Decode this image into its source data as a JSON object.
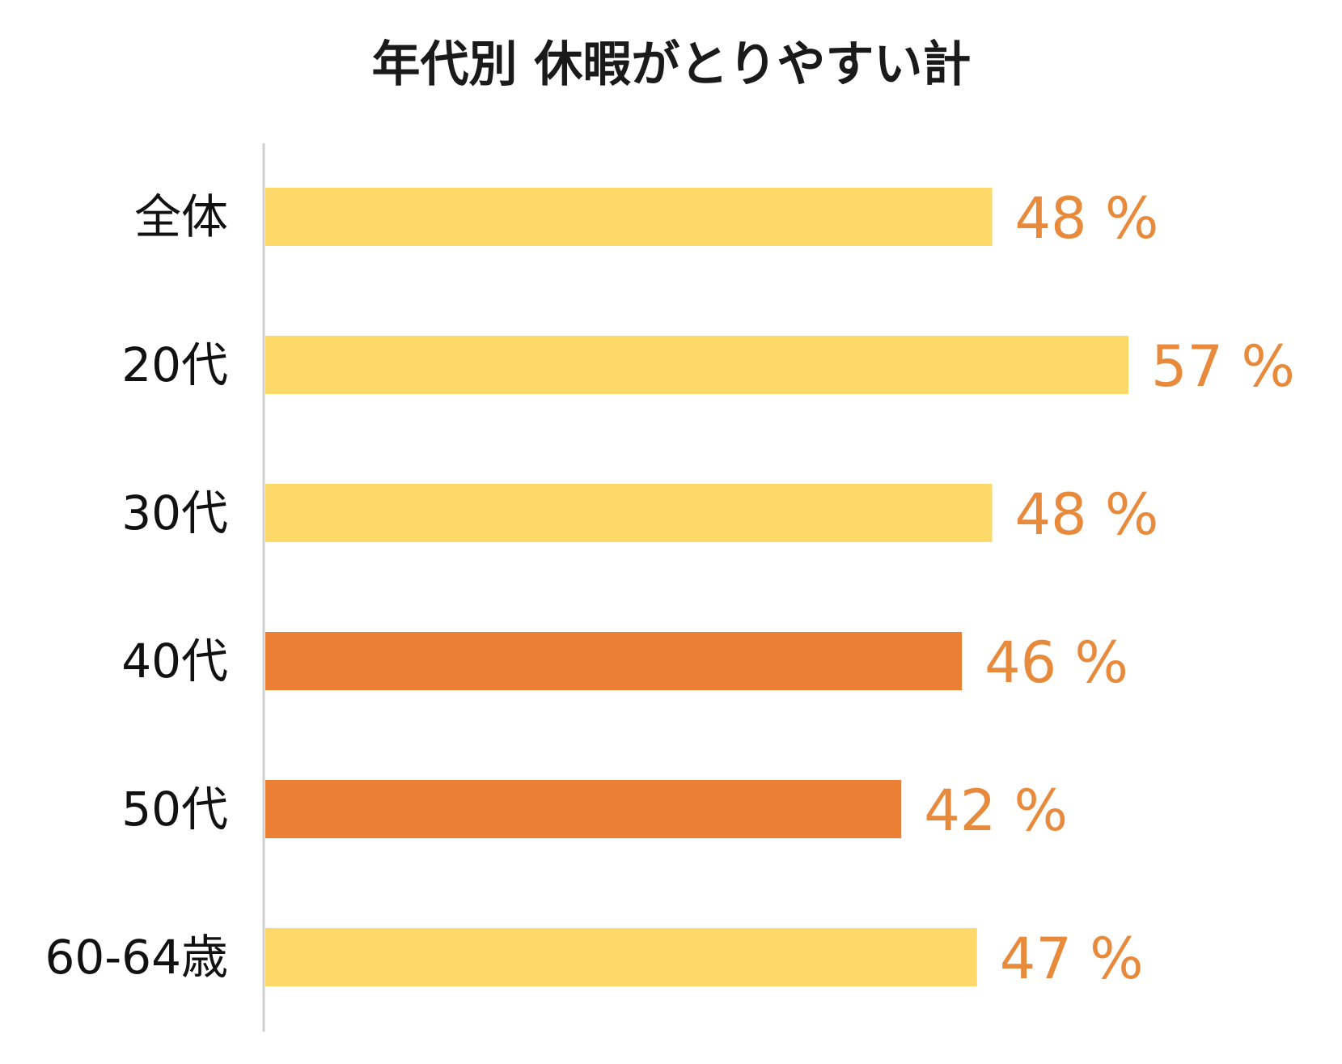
{
  "chart_data": {
    "type": "bar",
    "orientation": "horizontal",
    "title": "年代別 休暇がとりやすい計",
    "categories": [
      "全体",
      "20代",
      "30代",
      "40代",
      "50代",
      "60-64歳"
    ],
    "values": [
      48,
      57,
      48,
      46,
      42,
      47
    ],
    "value_labels": [
      "48 %",
      "57 %",
      "48 %",
      "46 %",
      "42 %",
      "47 %"
    ],
    "xlim": [
      0,
      57
    ],
    "grid": false,
    "legend": "none",
    "colors": {
      "bar_default": "#FDD96A",
      "bar_highlight": "#EB7F34",
      "value_label": "#E88A3C",
      "axis": "#d0d0d0"
    },
    "highlight_categories": [
      "40代",
      "50代"
    ]
  }
}
